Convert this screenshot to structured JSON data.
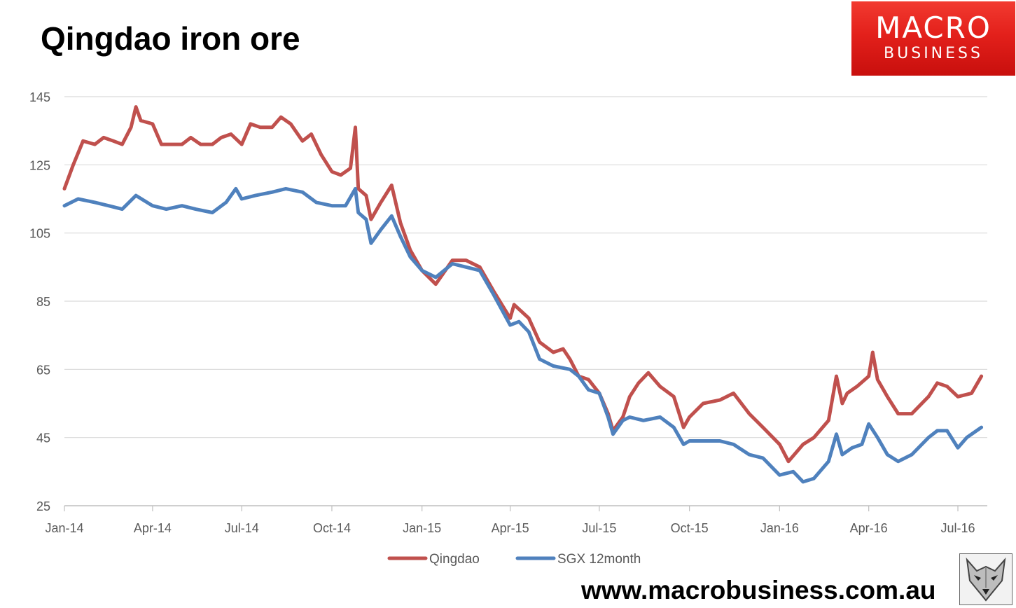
{
  "header": {
    "title": "Qingdao iron ore"
  },
  "brand": {
    "logo_top": "MACRO",
    "logo_bottom": "BUSINESS",
    "url": "www.macrobusiness.com.au",
    "mascot_icon": "wolf-icon"
  },
  "chart_data": {
    "type": "line",
    "title": "Qingdao iron ore",
    "xlabel": "",
    "ylabel": "",
    "x_ticks": [
      "Jan-14",
      "Apr-14",
      "Jul-14",
      "Oct-14",
      "Jan-15",
      "Apr-15",
      "Jul-15",
      "Oct-15",
      "Jan-16",
      "Apr-16",
      "Jul-16"
    ],
    "y_ticks": [
      25,
      45,
      65,
      85,
      105,
      125,
      145
    ],
    "ylim": [
      25,
      145
    ],
    "xlim": [
      "2014-01-01",
      "2016-07-31"
    ],
    "grid": true,
    "legend": "bottom-center",
    "series": [
      {
        "name": "Qingdao",
        "color": "#c0504d",
        "points": [
          [
            "2014-01-01",
            118
          ],
          [
            "2014-01-10",
            125
          ],
          [
            "2014-01-20",
            132
          ],
          [
            "2014-02-01",
            131
          ],
          [
            "2014-02-10",
            133
          ],
          [
            "2014-02-20",
            132
          ],
          [
            "2014-03-01",
            131
          ],
          [
            "2014-03-10",
            136
          ],
          [
            "2014-03-15",
            142
          ],
          [
            "2014-03-20",
            138
          ],
          [
            "2014-04-01",
            137
          ],
          [
            "2014-04-10",
            131
          ],
          [
            "2014-04-20",
            131
          ],
          [
            "2014-05-01",
            131
          ],
          [
            "2014-05-10",
            133
          ],
          [
            "2014-05-20",
            131
          ],
          [
            "2014-06-01",
            131
          ],
          [
            "2014-06-10",
            133
          ],
          [
            "2014-06-20",
            134
          ],
          [
            "2014-07-01",
            131
          ],
          [
            "2014-07-10",
            137
          ],
          [
            "2014-07-20",
            136
          ],
          [
            "2014-08-01",
            136
          ],
          [
            "2014-08-10",
            139
          ],
          [
            "2014-08-20",
            137
          ],
          [
            "2014-09-01",
            132
          ],
          [
            "2014-09-10",
            134
          ],
          [
            "2014-09-20",
            128
          ],
          [
            "2014-10-01",
            123
          ],
          [
            "2014-10-10",
            122
          ],
          [
            "2014-10-20",
            124
          ],
          [
            "2014-10-25",
            136
          ],
          [
            "2014-10-28",
            118
          ],
          [
            "2014-11-05",
            116
          ],
          [
            "2014-11-10",
            109
          ],
          [
            "2014-11-20",
            114
          ],
          [
            "2014-12-01",
            119
          ],
          [
            "2014-12-10",
            108
          ],
          [
            "2014-12-20",
            100
          ],
          [
            "2015-01-01",
            94
          ],
          [
            "2015-01-15",
            90
          ],
          [
            "2015-02-01",
            97
          ],
          [
            "2015-02-15",
            97
          ],
          [
            "2015-03-01",
            95
          ],
          [
            "2015-03-15",
            88
          ],
          [
            "2015-04-01",
            80
          ],
          [
            "2015-04-05",
            84
          ],
          [
            "2015-04-20",
            80
          ],
          [
            "2015-05-01",
            73
          ],
          [
            "2015-05-15",
            70
          ],
          [
            "2015-05-25",
            71
          ],
          [
            "2015-06-01",
            68
          ],
          [
            "2015-06-10",
            63
          ],
          [
            "2015-06-20",
            62
          ],
          [
            "2015-07-01",
            58
          ],
          [
            "2015-07-10",
            52
          ],
          [
            "2015-07-15",
            47
          ],
          [
            "2015-07-25",
            51
          ],
          [
            "2015-08-01",
            57
          ],
          [
            "2015-08-10",
            61
          ],
          [
            "2015-08-20",
            64
          ],
          [
            "2015-09-01",
            60
          ],
          [
            "2015-09-15",
            57
          ],
          [
            "2015-09-25",
            48
          ],
          [
            "2015-10-01",
            51
          ],
          [
            "2015-10-15",
            55
          ],
          [
            "2015-11-01",
            56
          ],
          [
            "2015-11-15",
            58
          ],
          [
            "2015-12-01",
            52
          ],
          [
            "2015-12-15",
            48
          ],
          [
            "2016-01-01",
            43
          ],
          [
            "2016-01-10",
            38
          ],
          [
            "2016-01-25",
            43
          ],
          [
            "2016-02-05",
            45
          ],
          [
            "2016-02-20",
            50
          ],
          [
            "2016-02-28",
            63
          ],
          [
            "2016-03-05",
            55
          ],
          [
            "2016-03-10",
            58
          ],
          [
            "2016-03-20",
            60
          ],
          [
            "2016-04-01",
            63
          ],
          [
            "2016-04-05",
            70
          ],
          [
            "2016-04-10",
            62
          ],
          [
            "2016-04-20",
            57
          ],
          [
            "2016-05-01",
            52
          ],
          [
            "2016-05-15",
            52
          ],
          [
            "2016-06-01",
            57
          ],
          [
            "2016-06-10",
            61
          ],
          [
            "2016-06-20",
            60
          ],
          [
            "2016-07-01",
            57
          ],
          [
            "2016-07-15",
            58
          ],
          [
            "2016-07-25",
            63
          ]
        ]
      },
      {
        "name": "SGX 12month",
        "color": "#4f81bd",
        "points": [
          [
            "2014-01-01",
            113
          ],
          [
            "2014-01-15",
            115
          ],
          [
            "2014-02-01",
            114
          ],
          [
            "2014-02-15",
            113
          ],
          [
            "2014-03-01",
            112
          ],
          [
            "2014-03-15",
            116
          ],
          [
            "2014-04-01",
            113
          ],
          [
            "2014-04-15",
            112
          ],
          [
            "2014-05-01",
            113
          ],
          [
            "2014-05-15",
            112
          ],
          [
            "2014-06-01",
            111
          ],
          [
            "2014-06-15",
            114
          ],
          [
            "2014-06-25",
            118
          ],
          [
            "2014-07-01",
            115
          ],
          [
            "2014-07-15",
            116
          ],
          [
            "2014-08-01",
            117
          ],
          [
            "2014-08-15",
            118
          ],
          [
            "2014-09-01",
            117
          ],
          [
            "2014-09-15",
            114
          ],
          [
            "2014-10-01",
            113
          ],
          [
            "2014-10-15",
            113
          ],
          [
            "2014-10-25",
            118
          ],
          [
            "2014-10-28",
            111
          ],
          [
            "2014-11-05",
            109
          ],
          [
            "2014-11-10",
            102
          ],
          [
            "2014-11-20",
            106
          ],
          [
            "2014-12-01",
            110
          ],
          [
            "2014-12-10",
            104
          ],
          [
            "2014-12-20",
            98
          ],
          [
            "2015-01-01",
            94
          ],
          [
            "2015-01-15",
            92
          ],
          [
            "2015-02-01",
            96
          ],
          [
            "2015-02-15",
            95
          ],
          [
            "2015-03-01",
            94
          ],
          [
            "2015-03-15",
            87
          ],
          [
            "2015-04-01",
            78
          ],
          [
            "2015-04-10",
            79
          ],
          [
            "2015-04-20",
            76
          ],
          [
            "2015-05-01",
            68
          ],
          [
            "2015-05-15",
            66
          ],
          [
            "2015-06-01",
            65
          ],
          [
            "2015-06-10",
            63
          ],
          [
            "2015-06-20",
            59
          ],
          [
            "2015-07-01",
            58
          ],
          [
            "2015-07-10",
            51
          ],
          [
            "2015-07-15",
            46
          ],
          [
            "2015-07-25",
            50
          ],
          [
            "2015-08-01",
            51
          ],
          [
            "2015-08-15",
            50
          ],
          [
            "2015-09-01",
            51
          ],
          [
            "2015-09-15",
            48
          ],
          [
            "2015-09-25",
            43
          ],
          [
            "2015-10-01",
            44
          ],
          [
            "2015-10-15",
            44
          ],
          [
            "2015-11-01",
            44
          ],
          [
            "2015-11-15",
            43
          ],
          [
            "2015-12-01",
            40
          ],
          [
            "2015-12-15",
            39
          ],
          [
            "2016-01-01",
            34
          ],
          [
            "2016-01-15",
            35
          ],
          [
            "2016-01-25",
            32
          ],
          [
            "2016-02-05",
            33
          ],
          [
            "2016-02-20",
            38
          ],
          [
            "2016-02-28",
            46
          ],
          [
            "2016-03-05",
            40
          ],
          [
            "2016-03-15",
            42
          ],
          [
            "2016-03-25",
            43
          ],
          [
            "2016-04-01",
            49
          ],
          [
            "2016-04-10",
            45
          ],
          [
            "2016-04-20",
            40
          ],
          [
            "2016-05-01",
            38
          ],
          [
            "2016-05-15",
            40
          ],
          [
            "2016-06-01",
            45
          ],
          [
            "2016-06-10",
            47
          ],
          [
            "2016-06-20",
            47
          ],
          [
            "2016-07-01",
            42
          ],
          [
            "2016-07-10",
            45
          ],
          [
            "2016-07-25",
            48
          ]
        ]
      }
    ]
  }
}
